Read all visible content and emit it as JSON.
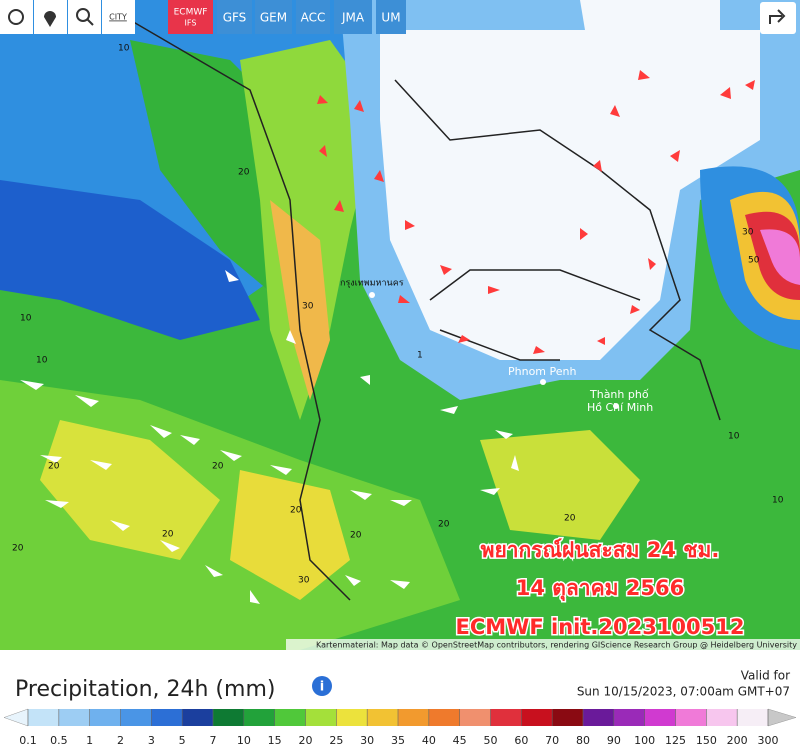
{
  "toolbar": {
    "city": "CITY",
    "models": [
      {
        "label": "ECMWF",
        "sub": "IFS"
      },
      {
        "label": "GFS"
      },
      {
        "label": "GEM"
      },
      {
        "label": "ACC"
      },
      {
        "label": "JMA"
      },
      {
        "label": "UM"
      }
    ]
  },
  "map": {
    "places": {
      "bangkok": "กรุงเทพมหานคร",
      "phnom_penh": "Phnom Penh",
      "hcmc": [
        "Thành phố",
        "Hồ Chí Minh"
      ]
    },
    "contour_labels": [
      "10",
      "20",
      "20",
      "10",
      "30",
      "30",
      "10",
      "20",
      "20",
      "20",
      "20",
      "20",
      "20",
      "10",
      "20",
      "1",
      "10",
      "30",
      "50"
    ],
    "overlay": [
      "พยากรณ์ฝนสะสม 24 ชม.",
      "14 ตุลาคม 2566",
      "ECMWF  init.2023100512"
    ],
    "attribution": "Kartenmaterial: Map data © OpenStreetMap contributors, rendering GIScience Research Group @ Heidelberg University"
  },
  "legend": {
    "title": "Precipitation, 24h (mm)",
    "valid_label": "Valid for",
    "valid_time": "Sun 10/15/2023, 07:00am GMT+07",
    "ticks": [
      0.1,
      0.5,
      1,
      2,
      3,
      5,
      7,
      10,
      15,
      20,
      25,
      30,
      35,
      40,
      45,
      50,
      60,
      70,
      80,
      90,
      100,
      125,
      150,
      200,
      300
    ],
    "colors": [
      "#e8f4fc",
      "#c3e3f8",
      "#9dcdf3",
      "#6fb1ee",
      "#4a95e6",
      "#2c6fd6",
      "#1b3f9e",
      "#0e7a33",
      "#22a23a",
      "#50c83a",
      "#a4e03a",
      "#ece23c",
      "#f2c233",
      "#f29a2e",
      "#ef7a2c",
      "#f0906e",
      "#e0303c",
      "#c8101e",
      "#8a0a12",
      "#6a1a9a",
      "#9a2ab8",
      "#d03ad0",
      "#f07ad8",
      "#f7c6ee",
      "#f6eef6",
      "#c8c8c8"
    ]
  }
}
